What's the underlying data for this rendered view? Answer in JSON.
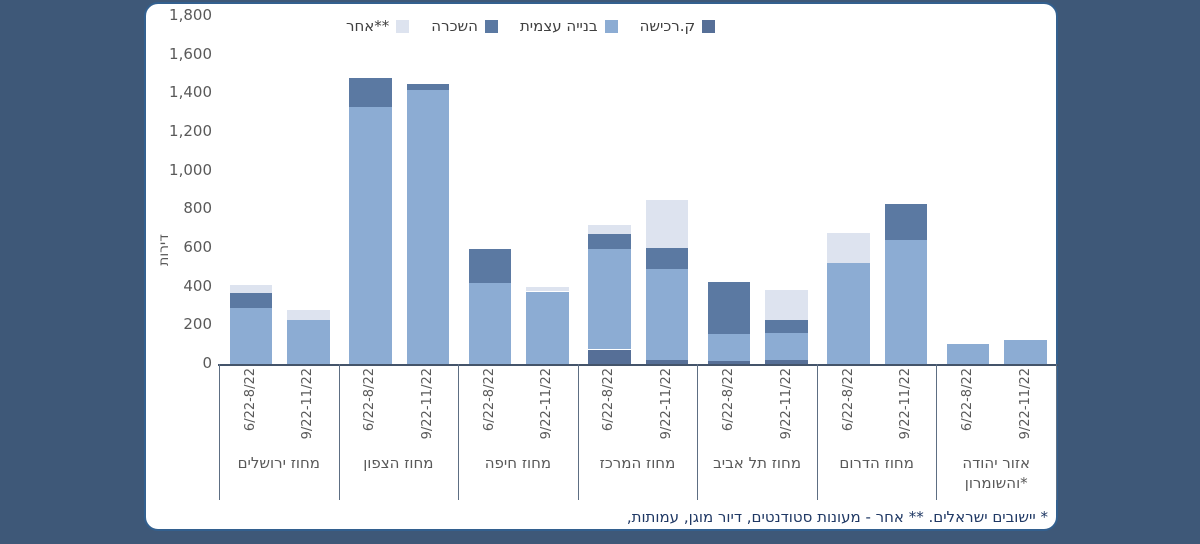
{
  "page": {
    "background_color": "#3e5878",
    "card_background": "#ffffff",
    "card_border_color": "#33608f"
  },
  "footnote": "* יישובים ישראלים. ** אחר - מעונות סטודנטים, דיור מוגן, עמותות,",
  "chart_data": {
    "type": "bar",
    "stacked": true,
    "direction": "rtl",
    "title": "",
    "xlabel": "",
    "ylabel": "דירות",
    "ylim": [
      0,
      1800
    ],
    "ytick_step": 200,
    "grid": false,
    "legend_position": "top",
    "legend_order_displayed_ltr": [
      "אחר**",
      "השכרה",
      "בנייה עצמית",
      "ק.רכישה"
    ],
    "categories": [
      "מחוז ירושלים",
      "מחוז הצפון",
      "מחוז חיפה",
      "מחוז המרכז",
      "מחוז תל אביב",
      "מחוז הדרום",
      "אזור יהודה והשומרון*"
    ],
    "periods": [
      "6/22-8/22",
      "9/22-11/22"
    ],
    "series": [
      {
        "name": "ק.רכישה",
        "color": "#566f97",
        "values": [
          [
            0,
            0
          ],
          [
            0,
            0
          ],
          [
            0,
            0
          ],
          [
            75,
            20
          ],
          [
            15,
            20
          ],
          [
            0,
            0
          ],
          [
            0,
            0
          ]
        ]
      },
      {
        "name": "בנייה עצמית",
        "color": "#8cacd3",
        "values": [
          [
            290,
            230
          ],
          [
            1330,
            1415
          ],
          [
            420,
            375
          ],
          [
            520,
            470
          ],
          [
            140,
            140
          ],
          [
            520,
            640
          ],
          [
            105,
            125
          ]
        ]
      },
      {
        "name": "השכרה",
        "color": "#5b79a2",
        "values": [
          [
            75,
            0
          ],
          [
            150,
            35
          ],
          [
            175,
            0
          ],
          [
            75,
            110
          ],
          [
            270,
            70
          ],
          [
            0,
            190
          ],
          [
            0,
            0
          ]
        ]
      },
      {
        "name": "אחר**",
        "color": "#dde3ef",
        "values": [
          [
            45,
            50
          ],
          [
            0,
            0
          ],
          [
            0,
            25
          ],
          [
            50,
            250
          ],
          [
            0,
            155
          ],
          [
            160,
            0
          ],
          [
            0,
            0
          ]
        ]
      }
    ],
    "totals_by_category_period": [
      [
        410,
        280
      ],
      [
        1480,
        1450
      ],
      [
        595,
        400
      ],
      [
        720,
        850
      ],
      [
        425,
        385
      ],
      [
        680,
        830
      ],
      [
        105,
        125
      ]
    ]
  }
}
